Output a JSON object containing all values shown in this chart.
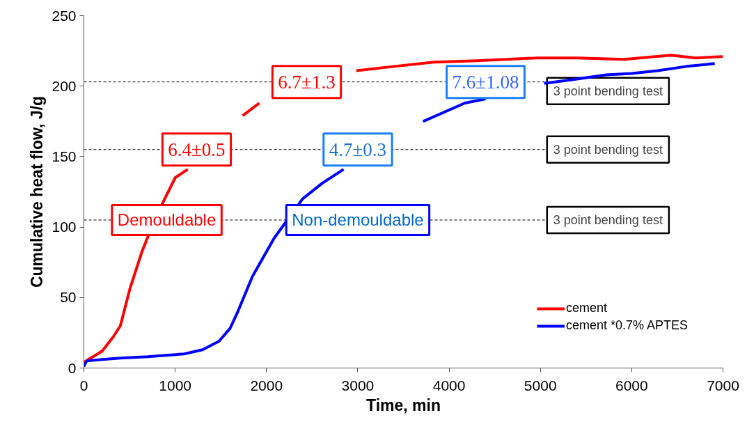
{
  "chart_data": {
    "type": "line",
    "xlabel": "Time, min",
    "ylabel": "Cumulative heat flow, J/g",
    "xlim": [
      0,
      7000
    ],
    "xticks": [
      0,
      1000,
      2000,
      3000,
      4000,
      5000,
      6000,
      7000
    ],
    "ylim": [
      0,
      250
    ],
    "yticks": [
      0,
      50,
      100,
      150,
      200,
      250
    ],
    "grid": false,
    "legend": "bottom right",
    "marker": "none",
    "line_style": "solid",
    "series": [
      {
        "name": "cement",
        "color": "#ff0000",
        "x": [
          0,
          100,
          200,
          320,
          400,
          503,
          633,
          694,
          870,
          1000,
          1137,
          1300,
          1533,
          1739,
          1922,
          2060,
          2300,
          2600,
          2983,
          3400,
          3830,
          4300,
          4960,
          5400,
          5920,
          6430,
          6700,
          7000
        ],
        "values": [
          4,
          8,
          12,
          22,
          30,
          56,
          82,
          92,
          118,
          135,
          141,
          null,
          null,
          179,
          188,
          null,
          null,
          null,
          211,
          214,
          217,
          218,
          220,
          220,
          219,
          222,
          220,
          221
        ]
      },
      {
        "name": "cement *0.7% APTES",
        "color": "#0000ff",
        "x": [
          0,
          30,
          200,
          400,
          700,
          900,
          1100,
          1300,
          1480,
          1600,
          1686,
          1846,
          2083,
          2395,
          2608,
          2845,
          3100,
          3432,
          3715,
          4173,
          4400,
          4750,
          5042,
          5400,
          5720,
          6000,
          6285,
          6600,
          6910
        ],
        "values": [
          1,
          5,
          6,
          7,
          8,
          9,
          10,
          13,
          19,
          28,
          40,
          65,
          92,
          120,
          131,
          141,
          null,
          null,
          175,
          188,
          191,
          null,
          202,
          205,
          208,
          209,
          211,
          214,
          216
        ]
      }
    ],
    "ref_lines": [
      {
        "axis": "y",
        "value": 203,
        "label": "3 point bending test",
        "color": "#000000",
        "line_style": "dashed"
      },
      {
        "axis": "y",
        "value": 155,
        "label": "3 point bending test",
        "color": "#000000",
        "line_style": "dashed"
      },
      {
        "axis": "y",
        "value": 105,
        "label": "3 point bending test",
        "color": "#000000",
        "line_style": "dashed"
      }
    ],
    "annotations": [
      {
        "text": "Demouldable",
        "x": 908,
        "y": 105
      },
      {
        "text": "Non-demouldable",
        "x": 3000,
        "y": 105
      },
      {
        "text": "6.4±0.5",
        "x": 1235,
        "y": 155
      },
      {
        "text": "4.7±0.3",
        "x": 3000,
        "y": 155
      },
      {
        "text": "6.7±1.3",
        "x": 2440,
        "y": 203
      },
      {
        "text": "7.6±1.08",
        "x": 4400,
        "y": 203
      }
    ]
  }
}
